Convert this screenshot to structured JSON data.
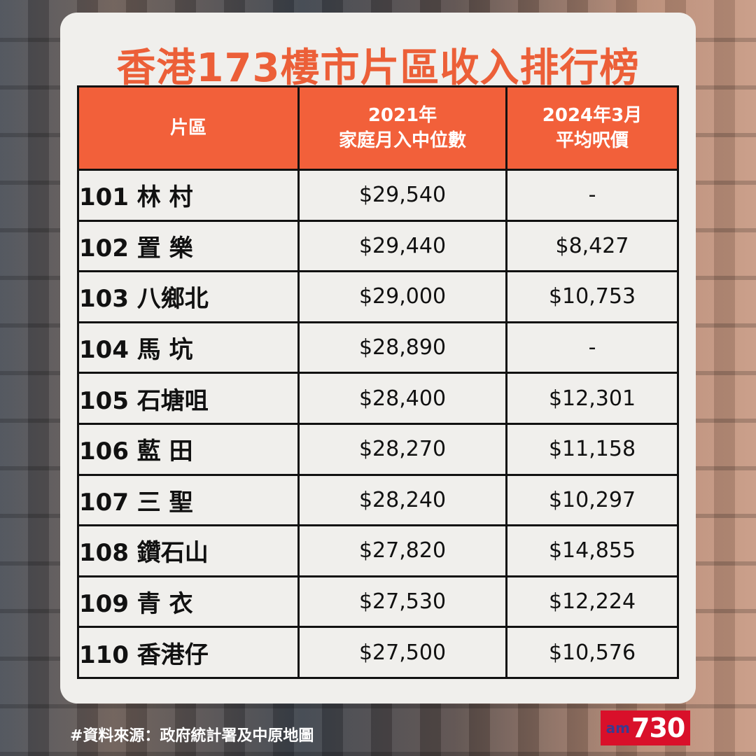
{
  "title": "香港173樓市片區收入排行榜",
  "table": {
    "headers": [
      {
        "line1": "片區",
        "line2": ""
      },
      {
        "line1": "2021年",
        "line2": "家庭月入中位數"
      },
      {
        "line1": "2024年3月",
        "line2": "平均呎價"
      }
    ],
    "rows": [
      {
        "district": "101 林 村",
        "income": "$29,540",
        "price": "-"
      },
      {
        "district": "102 置 樂",
        "income": "$29,440",
        "price": "$8,427"
      },
      {
        "district": "103 八鄉北",
        "income": "$29,000",
        "price": "$10,753"
      },
      {
        "district": "104 馬 坑",
        "income": "$28,890",
        "price": "-"
      },
      {
        "district": "105 石塘咀",
        "income": "$28,400",
        "price": "$12,301"
      },
      {
        "district": "106 藍 田",
        "income": "$28,270",
        "price": "$11,158"
      },
      {
        "district": "107 三 聖",
        "income": "$28,240",
        "price": "$10,297"
      },
      {
        "district": "108 鑽石山",
        "income": "$27,820",
        "price": "$14,855"
      },
      {
        "district": "109 青 衣",
        "income": "$27,530",
        "price": "$12,224"
      },
      {
        "district": "110 香港仔",
        "income": "$27,500",
        "price": "$10,576"
      }
    ]
  },
  "source": "#資料來源：政府統計署及中原地圖",
  "logo": {
    "prefix": "am",
    "number": "730"
  },
  "colors": {
    "accent": "#ec5f38",
    "header_bg": "#f2603a",
    "logo_bg": "#d9102a"
  }
}
